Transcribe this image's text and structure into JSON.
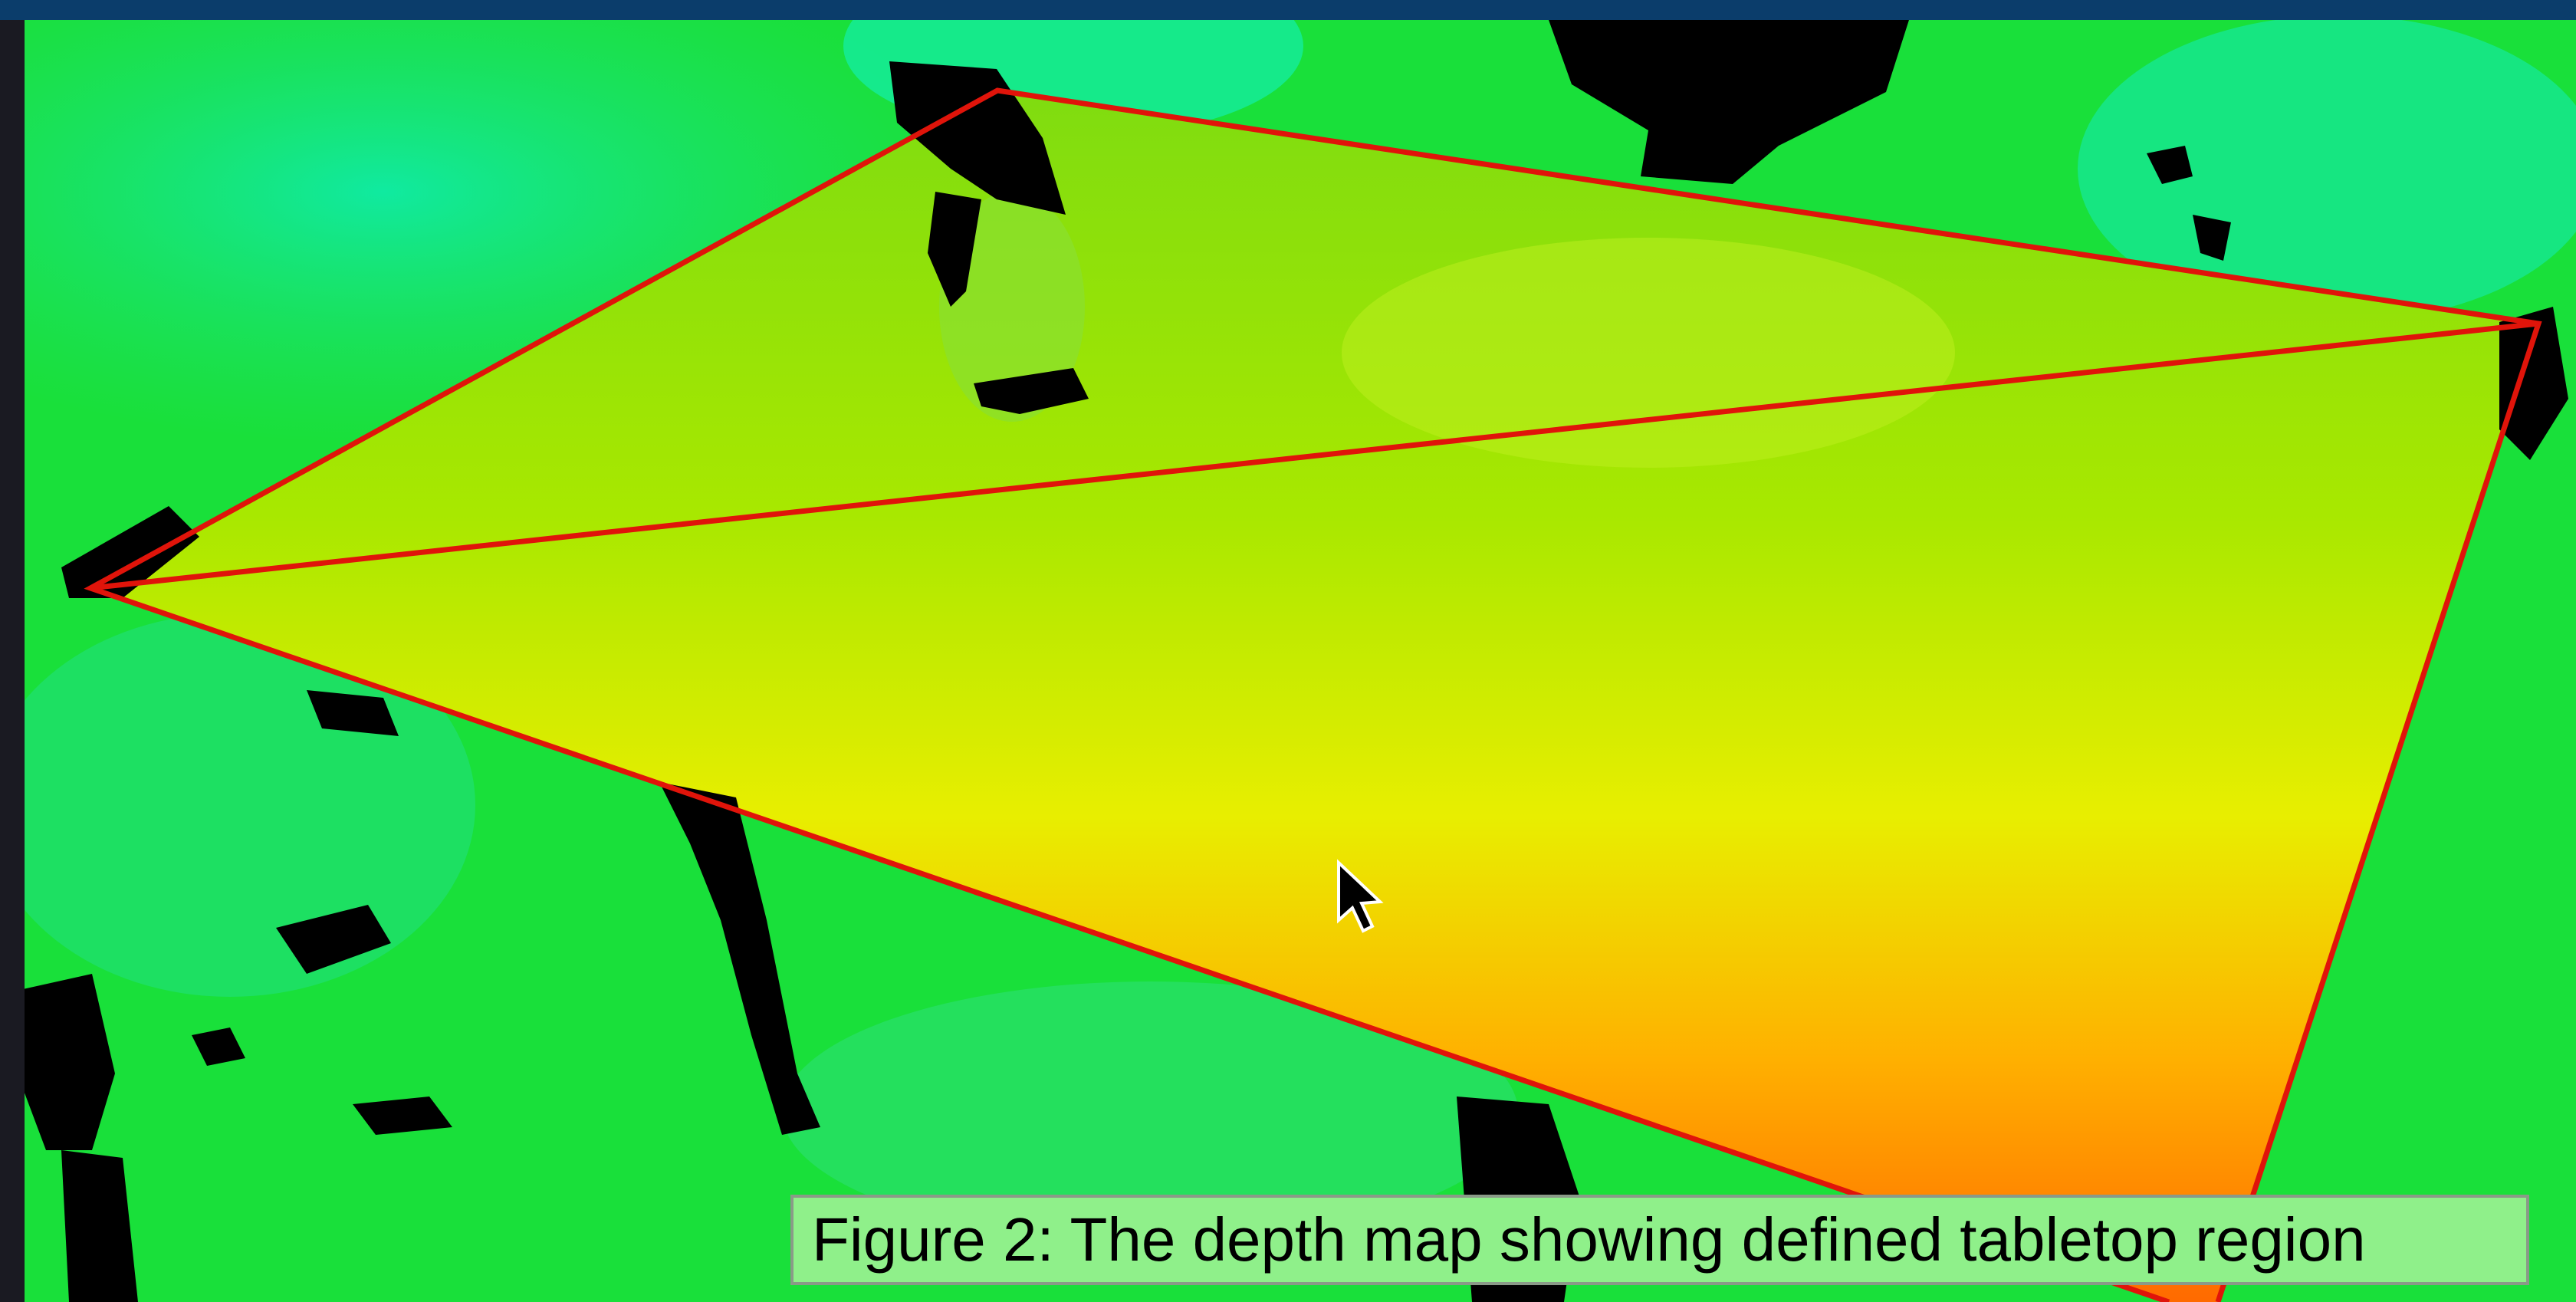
{
  "caption": "Figure 2: The depth map showing defined tabletop region"
}
